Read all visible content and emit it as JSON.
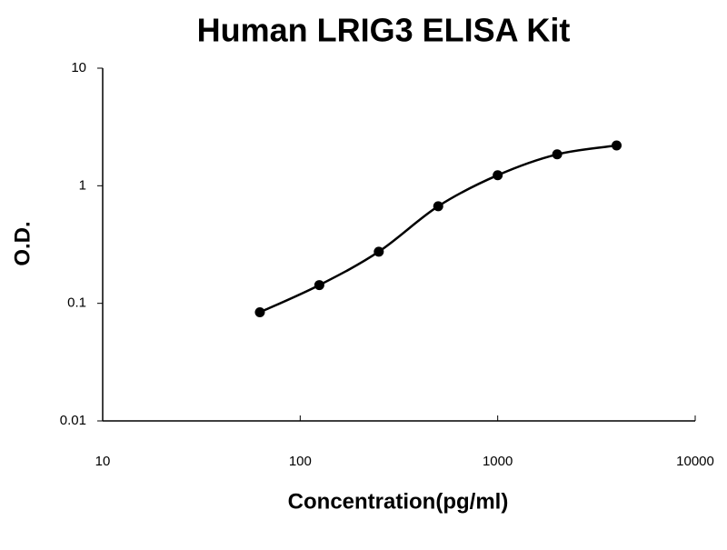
{
  "chart_data": {
    "type": "scatter",
    "title": "Human LRIG3 ELISA Kit",
    "x_label": "Concentration(pg/ml)",
    "y_label": "O.D.",
    "x": [
      62.5,
      125,
      250,
      500,
      1000,
      2000,
      4000
    ],
    "series": [
      {
        "color": "#000000",
        "values": [
          0.084,
          0.143,
          0.275,
          0.67,
          1.23,
          1.85,
          2.2
        ]
      }
    ],
    "xlim": [
      10,
      10000
    ],
    "ylim": [
      0.01,
      10
    ],
    "xticks": [
      10,
      100,
      1000,
      10000
    ],
    "yticks": [
      0.01,
      0.1,
      1,
      10
    ],
    "x_log": true,
    "y_log": true,
    "fit_line": true,
    "grid": false
  }
}
